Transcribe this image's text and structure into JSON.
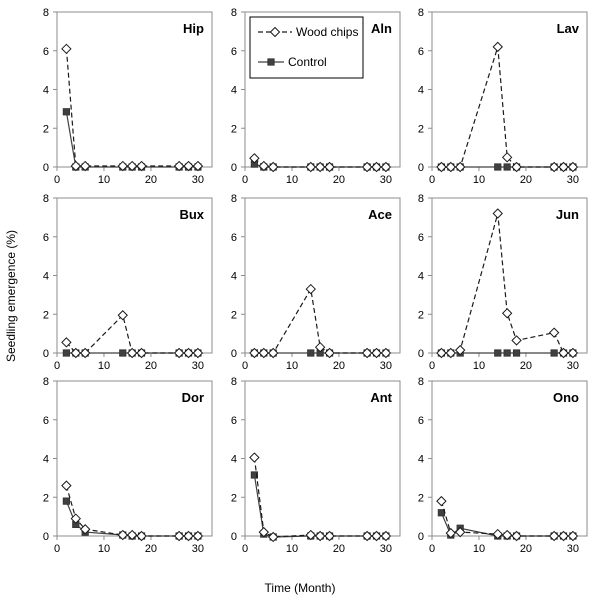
{
  "chart_data": {
    "type": "line",
    "xlabel": "Time (Month)",
    "ylabel": "Seedling emergence (%)",
    "xlim": [
      0,
      33
    ],
    "ylim": [
      0,
      8
    ],
    "x_ticks": [
      "0",
      "10",
      "20",
      "30"
    ],
    "y_ticks": [
      "0",
      "2",
      "4",
      "6",
      "8"
    ],
    "grid": false,
    "legend": {
      "placement": "inside-top-left of middle top panel",
      "entries": [
        "Wood chips",
        "Control"
      ]
    },
    "series_styles": {
      "Wood chips": {
        "line": "dashed",
        "marker": "open-diamond",
        "color": "#1a1a1a"
      },
      "Control": {
        "line": "solid",
        "marker": "filled-square",
        "color": "#404040"
      }
    },
    "x": [
      2,
      4,
      6,
      14,
      16,
      18,
      26,
      28,
      30
    ],
    "panels": [
      {
        "title": "Hip",
        "series": [
          {
            "name": "Wood chips",
            "values": [
              6.1,
              0.05,
              0.05,
              0.05,
              0.05,
              0.05,
              0.05,
              0.05,
              0.05
            ]
          },
          {
            "name": "Control",
            "values": [
              2.85,
              0,
              0,
              0,
              0,
              0,
              0,
              0,
              0
            ]
          }
        ]
      },
      {
        "title": "Aln",
        "series": [
          {
            "name": "Wood chips",
            "values": [
              0.45,
              0.05,
              0,
              0,
              0,
              0,
              0,
              0,
              0
            ]
          },
          {
            "name": "Control",
            "values": [
              0.15,
              0,
              0,
              0,
              0,
              0,
              0,
              0,
              0
            ]
          }
        ]
      },
      {
        "title": "Lav",
        "series": [
          {
            "name": "Wood chips",
            "values": [
              0,
              0,
              0,
              6.2,
              0.5,
              0,
              0,
              0,
              0
            ]
          },
          {
            "name": "Control",
            "values": [
              0,
              0,
              0,
              0,
              0,
              0,
              0,
              0,
              0
            ]
          }
        ]
      },
      {
        "title": "Bux",
        "series": [
          {
            "name": "Wood chips",
            "values": [
              0.55,
              0,
              0,
              1.95,
              0,
              0,
              0,
              0,
              0
            ]
          },
          {
            "name": "Control",
            "values": [
              0,
              0,
              0,
              0,
              0,
              0,
              0,
              0,
              0
            ]
          }
        ]
      },
      {
        "title": "Ace",
        "series": [
          {
            "name": "Wood chips",
            "values": [
              0,
              0,
              0,
              3.3,
              0.3,
              0,
              0,
              0,
              0
            ]
          },
          {
            "name": "Control",
            "values": [
              0,
              0,
              0,
              0,
              0,
              0,
              0,
              0,
              0
            ]
          }
        ]
      },
      {
        "title": "Jun",
        "series": [
          {
            "name": "Wood chips",
            "values": [
              0,
              0,
              0.15,
              7.2,
              2.05,
              0.65,
              1.05,
              0,
              0
            ]
          },
          {
            "name": "Control",
            "values": [
              0,
              0,
              0,
              0,
              0,
              0,
              0,
              0,
              0
            ]
          }
        ]
      },
      {
        "title": "Dor",
        "series": [
          {
            "name": "Wood chips",
            "values": [
              2.6,
              0.9,
              0.35,
              0.05,
              0.05,
              0,
              0,
              0,
              0
            ]
          },
          {
            "name": "Control",
            "values": [
              1.8,
              0.6,
              0.2,
              0.05,
              0,
              0,
              0,
              0,
              0
            ]
          }
        ]
      },
      {
        "title": "Ant",
        "series": [
          {
            "name": "Wood chips",
            "values": [
              4.05,
              0.2,
              -0.05,
              0.05,
              0,
              0,
              0,
              0,
              0
            ]
          },
          {
            "name": "Control",
            "values": [
              3.15,
              0.1,
              -0.05,
              0,
              0,
              0,
              0,
              0,
              0
            ]
          }
        ]
      },
      {
        "title": "Ono",
        "series": [
          {
            "name": "Wood chips",
            "values": [
              1.8,
              0.15,
              0.2,
              0.1,
              0.05,
              0,
              0,
              0,
              0
            ]
          },
          {
            "name": "Control",
            "values": [
              1.2,
              0.05,
              0.4,
              0,
              0,
              0,
              0,
              0,
              0
            ]
          }
        ]
      }
    ]
  }
}
